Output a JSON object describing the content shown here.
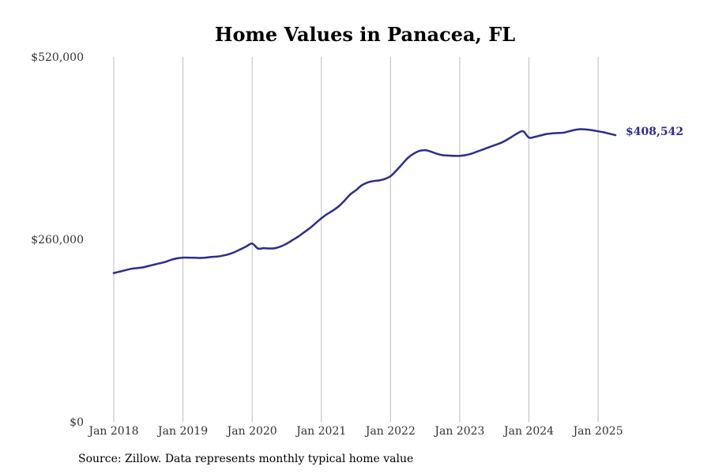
{
  "chart_data": {
    "type": "line",
    "title": "Home Values in Panacea, FL",
    "xlabel": "",
    "ylabel": "",
    "ylim": [
      0,
      520000
    ],
    "y_ticks": [
      {
        "value": 0,
        "label": "$0"
      },
      {
        "value": 260000,
        "label": "$260,000"
      },
      {
        "value": 520000,
        "label": "$520,000"
      }
    ],
    "x_range": [
      "2018-01",
      "2025-04"
    ],
    "x_ticks": [
      {
        "date": "2018-01",
        "label": "Jan 2018"
      },
      {
        "date": "2019-01",
        "label": "Jan 2019"
      },
      {
        "date": "2020-01",
        "label": "Jan 2020"
      },
      {
        "date": "2021-01",
        "label": "Jan 2021"
      },
      {
        "date": "2022-01",
        "label": "Jan 2022"
      },
      {
        "date": "2023-01",
        "label": "Jan 2023"
      },
      {
        "date": "2024-01",
        "label": "Jan 2024"
      },
      {
        "date": "2025-01",
        "label": "Jan 2025"
      }
    ],
    "grid": "vertical",
    "line_color": "#2e2d8f",
    "end_label": "$408,542",
    "series": [
      {
        "points": [
          [
            "2018-01",
            212000
          ],
          [
            "2018-02",
            214000
          ],
          [
            "2018-03",
            216000
          ],
          [
            "2018-04",
            218000
          ],
          [
            "2018-05",
            219000
          ],
          [
            "2018-06",
            220000
          ],
          [
            "2018-07",
            222000
          ],
          [
            "2018-08",
            224000
          ],
          [
            "2018-09",
            226000
          ],
          [
            "2018-10",
            228000
          ],
          [
            "2018-11",
            231000
          ],
          [
            "2018-12",
            233000
          ],
          [
            "2019-01",
            234000
          ],
          [
            "2019-02",
            234000
          ],
          [
            "2019-03",
            233800
          ],
          [
            "2019-04",
            233500
          ],
          [
            "2019-05",
            234000
          ],
          [
            "2019-06",
            235000
          ],
          [
            "2019-07",
            235500
          ],
          [
            "2019-08",
            237000
          ],
          [
            "2019-09",
            239000
          ],
          [
            "2019-10",
            242000
          ],
          [
            "2019-11",
            246000
          ],
          [
            "2019-12",
            250000
          ],
          [
            "2020-01",
            254000
          ],
          [
            "2020-02",
            247000
          ],
          [
            "2020-03",
            247500
          ],
          [
            "2020-04",
            247000
          ],
          [
            "2020-05",
            247500
          ],
          [
            "2020-06",
            250000
          ],
          [
            "2020-07",
            254000
          ],
          [
            "2020-08",
            259000
          ],
          [
            "2020-09",
            264000
          ],
          [
            "2020-10",
            270000
          ],
          [
            "2020-11",
            276000
          ],
          [
            "2020-12",
            283000
          ],
          [
            "2021-01",
            290000
          ],
          [
            "2021-02",
            296000
          ],
          [
            "2021-03",
            301000
          ],
          [
            "2021-04",
            307000
          ],
          [
            "2021-05",
            315000
          ],
          [
            "2021-06",
            324000
          ],
          [
            "2021-07",
            330000
          ],
          [
            "2021-08",
            337000
          ],
          [
            "2021-09",
            341000
          ],
          [
            "2021-10",
            343000
          ],
          [
            "2021-11",
            344000
          ],
          [
            "2021-12",
            346000
          ],
          [
            "2022-01",
            350000
          ],
          [
            "2022-02",
            358000
          ],
          [
            "2022-03",
            367000
          ],
          [
            "2022-04",
            376000
          ],
          [
            "2022-05",
            382000
          ],
          [
            "2022-06",
            386000
          ],
          [
            "2022-07",
            387000
          ],
          [
            "2022-08",
            385000
          ],
          [
            "2022-09",
            382000
          ],
          [
            "2022-10",
            380000
          ],
          [
            "2022-11",
            379500
          ],
          [
            "2022-12",
            379000
          ],
          [
            "2023-01",
            379000
          ],
          [
            "2023-02",
            380000
          ],
          [
            "2023-03",
            382000
          ],
          [
            "2023-04",
            385000
          ],
          [
            "2023-05",
            388000
          ],
          [
            "2023-06",
            391000
          ],
          [
            "2023-07",
            394000
          ],
          [
            "2023-08",
            397000
          ],
          [
            "2023-09",
            401000
          ],
          [
            "2023-10",
            406000
          ],
          [
            "2023-11",
            411000
          ],
          [
            "2023-12",
            414000
          ],
          [
            "2024-01",
            405000
          ],
          [
            "2024-02",
            406000
          ],
          [
            "2024-03",
            408000
          ],
          [
            "2024-04",
            410000
          ],
          [
            "2024-05",
            411000
          ],
          [
            "2024-06",
            411500
          ],
          [
            "2024-07",
            412000
          ],
          [
            "2024-08",
            414000
          ],
          [
            "2024-09",
            416000
          ],
          [
            "2024-10",
            417000
          ],
          [
            "2024-11",
            416500
          ],
          [
            "2024-12",
            415500
          ],
          [
            "2025-01",
            414000
          ],
          [
            "2025-02",
            412500
          ],
          [
            "2025-03",
            410500
          ],
          [
            "2025-04",
            408542
          ]
        ]
      }
    ]
  },
  "source_text": "Source: Zillow. Data represents monthly typical home value"
}
